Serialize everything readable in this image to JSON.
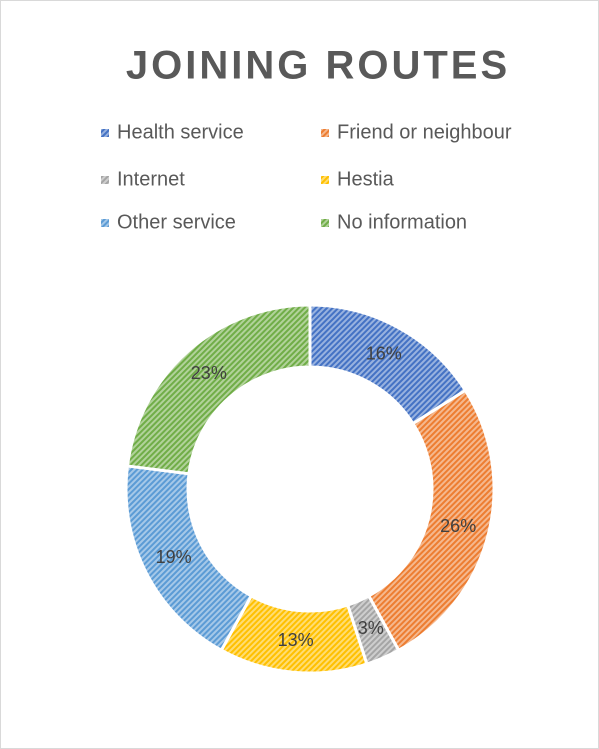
{
  "chart_data": {
    "type": "donut",
    "title": "JOINING ROUTES",
    "categories": [
      "Health service",
      "Friend or neighbour",
      "Internet",
      "Hestia",
      "Other service",
      "No information"
    ],
    "values": [
      16,
      26,
      3,
      13,
      19,
      23
    ],
    "value_labels": [
      "16%",
      "26%",
      "3%",
      "13%",
      "19%",
      "23%"
    ],
    "colors": [
      "#4472c4",
      "#ed7d31",
      "#a5a5a5",
      "#ffc000",
      "#5b9bd5",
      "#70ad47"
    ],
    "legend": "top"
  }
}
